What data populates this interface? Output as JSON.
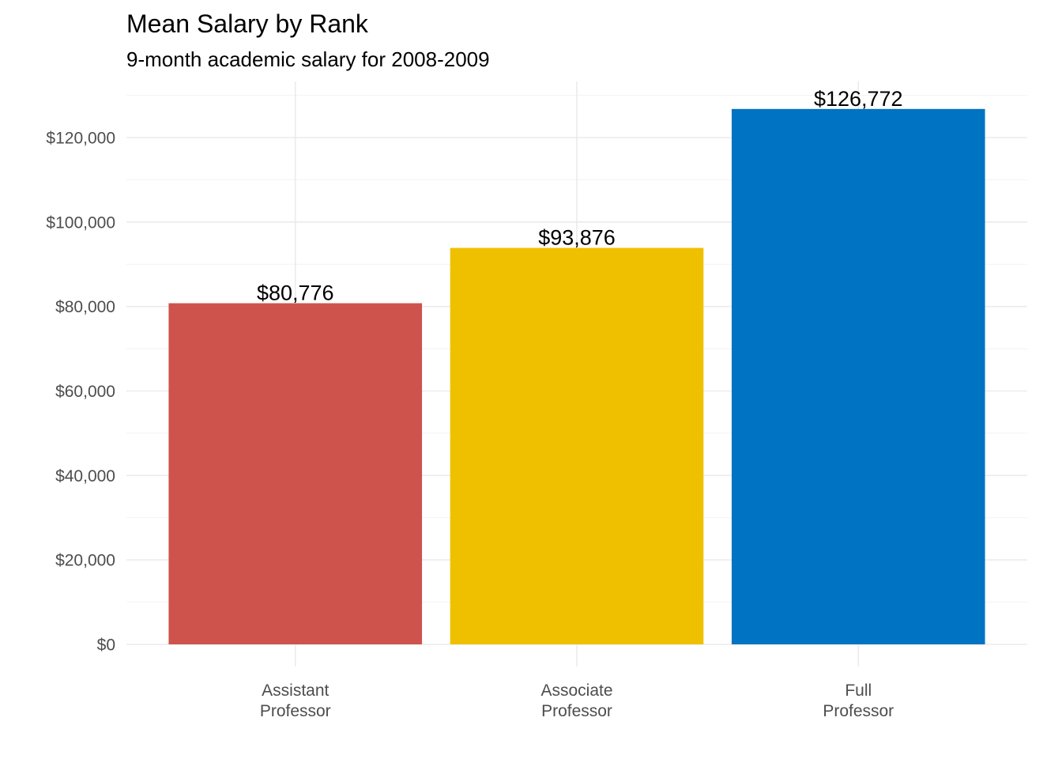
{
  "chart_data": {
    "type": "bar",
    "title": "Mean Salary by Rank",
    "subtitle": "9-month academic salary for 2008-2009",
    "xlabel": "",
    "ylabel": "",
    "categories": [
      [
        "Assistant",
        "Professor"
      ],
      [
        "Associate",
        "Professor"
      ],
      [
        "Full",
        "Professor"
      ]
    ],
    "values": [
      80776,
      93876,
      126772
    ],
    "data_labels": [
      "$80,776",
      "$93,876",
      "$126,772"
    ],
    "colors": [
      "#cd534c",
      "#efc000",
      "#0073c2"
    ],
    "ylim": [
      0,
      130000
    ],
    "y_ticks": [
      0,
      20000,
      40000,
      60000,
      80000,
      100000,
      120000
    ],
    "y_tick_labels": [
      "$0",
      "$20,000",
      "$40,000",
      "$60,000",
      "$80,000",
      "$100,000",
      "$120,000"
    ],
    "grid": true,
    "legend": "none"
  }
}
